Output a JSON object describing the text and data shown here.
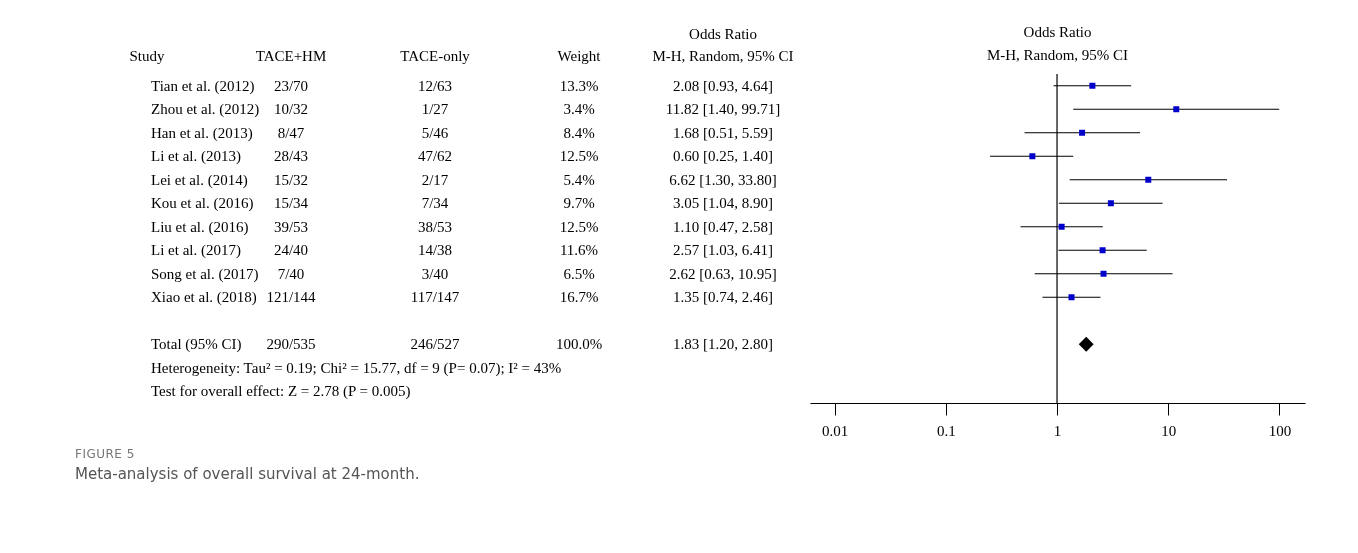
{
  "chart_data": [
    {
      "type": "other",
      "ylabel": "Study",
      "categories": [
        "TACE+HM",
        "TACE-only",
        "Weight",
        "Odds Ratio\nM-H, Random, 95% CI"
      ],
      "cell_labels": [
        [
          "23/70",
          "12/63",
          "13.3%",
          "2.08 [0.93, 4.64]"
        ],
        [
          "10/32",
          "1/27",
          "3.4%",
          "11.82 [1.40, 99.71]"
        ],
        [
          "8/47",
          "5/46",
          "8.4%",
          "1.68 [0.51, 5.59]"
        ],
        [
          "28/43",
          "47/62",
          "12.5%",
          "0.60 [0.25, 1.40]"
        ],
        [
          "15/32",
          "2/17",
          "5.4%",
          "6.62 [1.30, 33.80]"
        ],
        [
          "15/34",
          "7/34",
          "9.7%",
          "3.05 [1.04, 8.90]"
        ],
        [
          "39/53",
          "38/53",
          "12.5%",
          "1.10 [0.47, 2.58]"
        ],
        [
          "24/40",
          "14/38",
          "11.6%",
          "2.57 [1.03, 6.41]"
        ],
        [
          "7/40",
          "3/40",
          "6.5%",
          "2.62 [0.63, 10.95]"
        ],
        [
          "121/144",
          "117/147",
          "16.7%",
          "1.35 [0.74, 2.46]"
        ],
        [
          null,
          null,
          null,
          null
        ],
        [
          "290/535",
          "246/527",
          "100.0%",
          "1.83 [1.20, 2.80]"
        ]
      ],
      "annotations": [
        "Heterogeneity: Tau² = 0.19; Chi² = 15.77, df = 9 (P= 0.07); I² = 43%",
        "Test for overall effect: Z = 2.78 (P = 0.005)",
        "FIGURE 5",
        "Meta-analysis of overall survival at 24-month."
      ]
    },
    {
      "type": "scatter",
      "orientation": "horizontal",
      "title": "Odds Ratio",
      "subtitle": "M-H, Random, 95% CI",
      "log": "x",
      "xlim": [
        0.006,
        170
      ],
      "xticks": [
        0.01,
        0.1,
        1,
        10,
        100
      ],
      "tick_labels": "x",
      "categories": [
        "Tian et al. (2012)",
        "Zhou et al. (2012)",
        "Han et al. (2013)",
        "Li et al. (2013)",
        "Lei et al. (2014)",
        "Kou et al. (2016)",
        "Liu et al. (2016)",
        "Li et al. (2017)",
        "Song et al. (2017)",
        "Xiao et al. (2018)",
        null,
        "Total (95% CI)"
      ],
      "ref_lines": [
        {
          "axis": "x",
          "value": 1,
          "color": "#000000"
        }
      ],
      "series": [
        {
          "color": "#0000cc",
          "marker": "square",
          "values": [
            2.08,
            11.82,
            1.68,
            0.6,
            6.62,
            3.05,
            1.1,
            2.57,
            2.62,
            1.35,
            null,
            null
          ],
          "errors": [
            [
              0.93,
              4.64
            ],
            [
              1.4,
              99.71
            ],
            [
              0.51,
              5.59
            ],
            [
              0.25,
              1.4
            ],
            [
              1.3,
              33.8
            ],
            [
              1.04,
              8.9
            ],
            [
              0.47,
              2.58
            ],
            [
              1.03,
              6.41
            ],
            [
              0.63,
              10.95
            ],
            [
              0.74,
              2.46
            ],
            null,
            null
          ]
        },
        {
          "color": "#000000",
          "marker": "diamond",
          "values": [
            null,
            null,
            null,
            null,
            null,
            null,
            null,
            null,
            null,
            null,
            null,
            1.83
          ]
        }
      ]
    }
  ]
}
